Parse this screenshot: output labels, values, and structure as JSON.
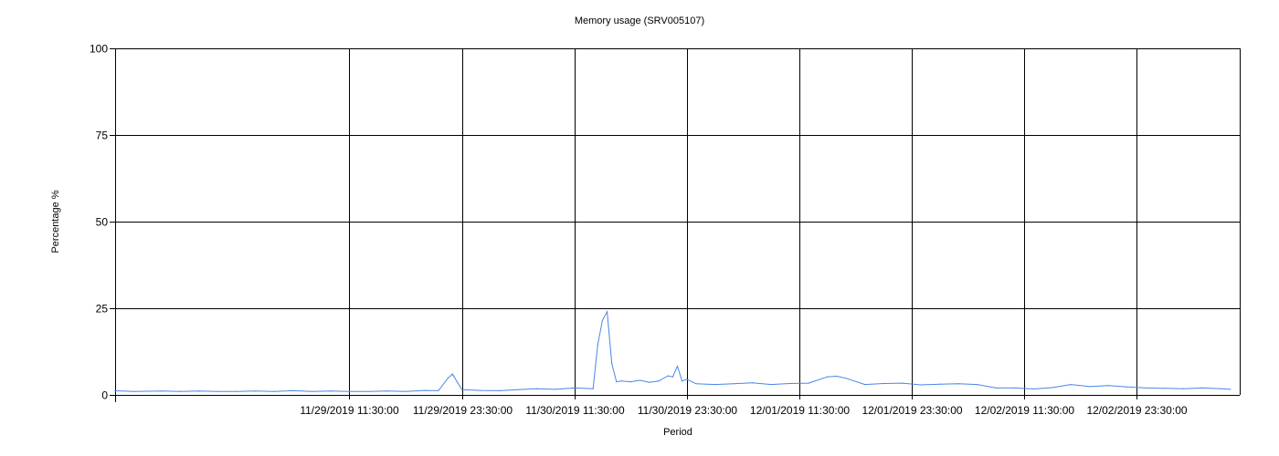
{
  "chart_data": {
    "type": "line",
    "title": "Memory usage (SRV005107)",
    "xlabel": "Period",
    "ylabel": "Percentage %",
    "ylim": [
      0,
      100
    ],
    "yticks": [
      0,
      25,
      50,
      75,
      100
    ],
    "xlim": [
      "2019-11-28T10:30:00",
      "2019-12-03T10:30:00"
    ],
    "x_tick_labels": [
      "11/29/2019 11:30:00",
      "11/29/2019 23:30:00",
      "11/30/2019 11:30:00",
      "11/30/2019 23:30:00",
      "12/01/2019 11:30:00",
      "12/01/2019 23:30:00",
      "12/02/2019 11:30:00",
      "12/02/2019 23:30:00"
    ],
    "x_tick_values": [
      "2019-11-29T11:30:00",
      "2019-11-29T23:30:00",
      "2019-11-30T11:30:00",
      "2019-11-30T23:30:00",
      "2019-12-01T11:30:00",
      "2019-12-01T23:30:00",
      "2019-12-02T11:30:00",
      "2019-12-02T23:30:00"
    ],
    "grid": true,
    "legend": "none",
    "series": [
      {
        "color": "#4a86e8",
        "x": [
          "2019-11-28T10:30:00",
          "2019-11-28T12:30:00",
          "2019-11-28T15:30:00",
          "2019-11-28T17:30:00",
          "2019-11-28T19:30:00",
          "2019-11-28T21:30:00",
          "2019-11-28T23:30:00",
          "2019-11-29T01:30:00",
          "2019-11-29T03:30:00",
          "2019-11-29T05:30:00",
          "2019-11-29T07:30:00",
          "2019-11-29T09:30:00",
          "2019-11-29T11:30:00",
          "2019-11-29T13:30:00",
          "2019-11-29T15:30:00",
          "2019-11-29T17:30:00",
          "2019-11-29T19:30:00",
          "2019-11-29T21:00:00",
          "2019-11-29T22:00:00",
          "2019-11-29T22:30:00",
          "2019-11-29T23:30:00",
          "2019-11-30T01:30:00",
          "2019-11-30T03:30:00",
          "2019-11-30T05:30:00",
          "2019-11-30T07:30:00",
          "2019-11-30T09:30:00",
          "2019-11-30T11:30:00",
          "2019-11-30T13:30:00",
          "2019-11-30T14:00:00",
          "2019-11-30T14:30:00",
          "2019-11-30T15:00:00",
          "2019-11-30T15:30:00",
          "2019-11-30T16:00:00",
          "2019-11-30T16:30:00",
          "2019-11-30T17:30:00",
          "2019-11-30T18:30:00",
          "2019-11-30T19:30:00",
          "2019-11-30T20:30:00",
          "2019-11-30T21:30:00",
          "2019-11-30T22:00:00",
          "2019-11-30T22:30:00",
          "2019-11-30T23:00:00",
          "2019-11-30T23:30:00",
          "2019-12-01T00:30:00",
          "2019-12-01T02:30:00",
          "2019-12-01T04:30:00",
          "2019-12-01T06:30:00",
          "2019-12-01T08:30:00",
          "2019-12-01T10:30:00",
          "2019-12-01T12:30:00",
          "2019-12-01T14:30:00",
          "2019-12-01T15:30:00",
          "2019-12-01T16:30:00",
          "2019-12-01T18:30:00",
          "2019-12-01T20:30:00",
          "2019-12-01T22:30:00",
          "2019-12-02T00:30:00",
          "2019-12-02T02:30:00",
          "2019-12-02T04:30:00",
          "2019-12-02T06:30:00",
          "2019-12-02T08:30:00",
          "2019-12-02T10:30:00",
          "2019-12-02T12:30:00",
          "2019-12-02T14:30:00",
          "2019-12-02T16:30:00",
          "2019-12-02T18:30:00",
          "2019-12-02T20:30:00",
          "2019-12-02T22:30:00",
          "2019-12-03T00:30:00",
          "2019-12-03T02:30:00",
          "2019-12-03T04:30:00",
          "2019-12-03T06:30:00",
          "2019-12-03T08:30:00",
          "2019-12-03T09:30:00"
        ],
        "y": [
          1.2,
          1.0,
          1.1,
          1.0,
          1.1,
          1.0,
          1.0,
          1.1,
          1.0,
          1.2,
          1.0,
          1.1,
          1.0,
          1.0,
          1.1,
          1.0,
          1.3,
          1.2,
          4.8,
          6.0,
          1.5,
          1.3,
          1.2,
          1.5,
          1.8,
          1.6,
          2.0,
          1.8,
          14.5,
          21.5,
          24.0,
          9.0,
          3.8,
          4.0,
          3.8,
          4.2,
          3.6,
          4.0,
          5.5,
          5.2,
          8.3,
          4.0,
          4.5,
          3.2,
          3.0,
          3.2,
          3.5,
          3.0,
          3.3,
          3.4,
          5.2,
          5.4,
          4.8,
          3.0,
          3.3,
          3.4,
          2.9,
          3.1,
          3.2,
          3.0,
          2.0,
          2.0,
          1.7,
          2.1,
          3.0,
          2.4,
          2.7,
          2.3,
          2.0,
          1.9,
          1.8,
          2.0,
          1.8,
          1.6
        ]
      }
    ]
  }
}
